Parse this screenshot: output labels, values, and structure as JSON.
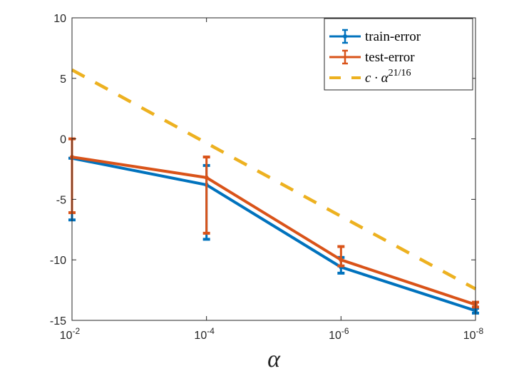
{
  "chart_data": {
    "type": "line",
    "title": "",
    "xlabel": "α",
    "ylabel": "",
    "xscale": "log",
    "x_reversed": true,
    "x": [
      0.01,
      0.0001,
      1e-06,
      1e-08
    ],
    "x_tick_labels": [
      {
        "base": "10",
        "exp": "-2"
      },
      {
        "base": "10",
        "exp": "-4"
      },
      {
        "base": "10",
        "exp": "-6"
      },
      {
        "base": "10",
        "exp": "-8"
      }
    ],
    "y_ticks": [
      10,
      5,
      0,
      -5,
      -10,
      -15
    ],
    "y_tick_labels": [
      "10",
      "5",
      "0",
      "-5",
      "-10",
      "-15"
    ],
    "ylim": [
      -15,
      10
    ],
    "grid": false,
    "legend_position": "upper right",
    "series": [
      {
        "name": "train-error",
        "color": "#0072BD",
        "style": "solid-errorbar",
        "values": [
          -1.6,
          -3.8,
          -10.6,
          -14.2
        ],
        "err_low": [
          -6.7,
          -8.3,
          -11.1,
          -14.4
        ],
        "err_high": [
          -1.6,
          -2.2,
          -9.8,
          -14.0
        ]
      },
      {
        "name": "test-error",
        "color": "#D95319",
        "style": "solid-errorbar",
        "values": [
          -1.5,
          -3.2,
          -10.0,
          -13.7
        ],
        "err_low": [
          -6.1,
          -7.8,
          -10.5,
          -13.9
        ],
        "err_high": [
          0.0,
          -1.5,
          -8.9,
          -13.5
        ]
      },
      {
        "name": "c · α^(21/16)",
        "color": "#EDB120",
        "style": "dashed",
        "values": [
          5.7,
          -0.35,
          -6.4,
          -12.4
        ]
      }
    ]
  },
  "legend": {
    "items": [
      {
        "label": "train-error",
        "color": "#0072BD"
      },
      {
        "label": "test-error",
        "color": "#D95319"
      },
      {
        "label_main": "c · α",
        "label_sup": "21/16",
        "color": "#EDB120"
      }
    ]
  },
  "axis": {
    "xlabel": "α"
  }
}
